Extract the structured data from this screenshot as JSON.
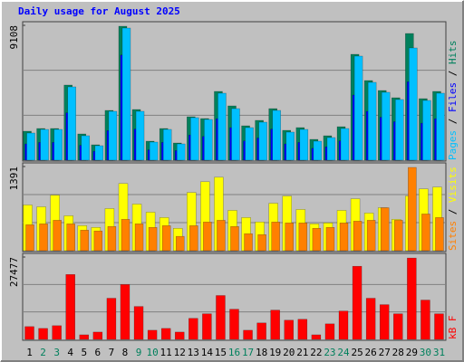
{
  "chart_data": [
    {
      "type": "grouped-bar",
      "title": "Daily usage for August 2025",
      "title_color": "#0000ff",
      "categories": [
        "1",
        "2",
        "3",
        "4",
        "5",
        "6",
        "7",
        "8",
        "9",
        "10",
        "11",
        "12",
        "13",
        "14",
        "15",
        "16",
        "17",
        "18",
        "19",
        "20",
        "21",
        "22",
        "23",
        "24",
        "25",
        "26",
        "27",
        "28",
        "29",
        "30",
        "31"
      ],
      "highlight_categories": [
        "2",
        "3",
        "9",
        "10",
        "16",
        "17",
        "23",
        "24",
        "30",
        "31"
      ],
      "highlight_color": "#00805c",
      "legend_separator": " / ",
      "series": [
        {
          "name": "Hits",
          "color": "#00805c",
          "values": [
            1956,
            2140,
            2140,
            5074,
            1773,
            1039,
            3362,
            9047,
            3423,
            1284,
            2140,
            1161,
            2934,
            2812,
            4646,
            3668,
            2323,
            2690,
            3484,
            2017,
            2201,
            1406,
            1650,
            2262,
            7152,
            5379,
            4707,
            4218,
            8558,
            4157,
            4646
          ]
        },
        {
          "name": "Files",
          "color": "#0000ff",
          "values": [
            1100,
            1200,
            1200,
            3200,
            1000,
            600,
            2000,
            7100,
            2100,
            700,
            1200,
            650,
            1700,
            1600,
            2800,
            2200,
            1300,
            1500,
            2100,
            1100,
            1200,
            800,
            900,
            1300,
            4400,
            3300,
            2900,
            2600,
            5300,
            2500,
            2800
          ]
        },
        {
          "name": "Pages",
          "color": "#00c0ff",
          "values": [
            1834,
            2079,
            2079,
            4952,
            1651,
            978,
            3301,
            8925,
            3301,
            1223,
            2079,
            1100,
            2873,
            2751,
            4524,
            3484,
            2201,
            2567,
            3362,
            1895,
            2079,
            1284,
            1528,
            2140,
            7030,
            5257,
            4585,
            4096,
            7580,
            4035,
            4524
          ]
        }
      ],
      "ylim": [
        0,
        9108
      ],
      "yticks": [
        9108
      ],
      "grid_divisions": 3
    },
    {
      "type": "grouped-bar",
      "series": [
        {
          "name": "Visits",
          "color": "#ffff00",
          "values": [
            755,
            725,
            918,
            577,
            414,
            385,
            696,
            1110,
            770,
            636,
            548,
            370,
            962,
            1140,
            1214,
            666,
            548,
            474,
            784,
            903,
            681,
            444,
            459,
            666,
            858,
            622,
            710,
            518,
            903,
            1021,
            1051
          ]
        },
        {
          "name": "Sites",
          "color": "#ff8000",
          "values": [
            429,
            444,
            503,
            444,
            340,
            326,
            400,
            518,
            444,
            385,
            414,
            237,
            414,
            474,
            503,
            400,
            281,
            266,
            474,
            459,
            459,
            370,
            385,
            459,
            488,
            503,
            710,
            503,
            1376,
            607,
            548
          ]
        }
      ],
      "ylim": [
        0,
        1391
      ],
      "yticks": [
        1391
      ],
      "grid_divisions": 3
    },
    {
      "type": "grouped-bar",
      "series": [
        {
          "name": "kB F",
          "color": "#ff0000",
          "values": [
            4270,
            3660,
            4575,
            21655,
            1525,
            2440,
            13725,
            18300,
            10980,
            3050,
            3660,
            2440,
            7015,
            8540,
            14640,
            10065,
            3050,
            5490,
            9760,
            6405,
            6710,
            1525,
            5185,
            9455,
            24400,
            13725,
            11590,
            8540,
            27145,
            13115,
            8540
          ]
        }
      ],
      "ylim": [
        0,
        27477
      ],
      "yticks": [
        27477
      ],
      "grid_divisions": 3
    }
  ]
}
